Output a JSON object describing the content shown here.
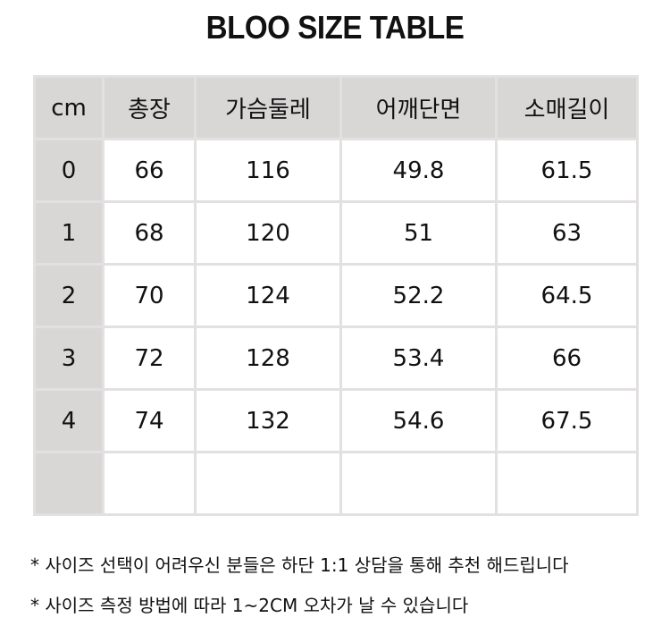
{
  "title": "BLOO SIZE TABLE",
  "table": {
    "headers": [
      "cm",
      "총장",
      "가슴둘레",
      "어깨단면",
      "소매길이"
    ],
    "rows": [
      [
        "0",
        "66",
        "116",
        "49.8",
        "61.5"
      ],
      [
        "1",
        "68",
        "120",
        "51",
        "63"
      ],
      [
        "2",
        "70",
        "124",
        "52.2",
        "64.5"
      ],
      [
        "3",
        "72",
        "128",
        "53.4",
        "66"
      ],
      [
        "4",
        "74",
        "132",
        "54.6",
        "67.5"
      ],
      [
        "",
        "",
        "",
        "",
        ""
      ]
    ]
  },
  "notes": [
    "* 사이즈 선택이 어려우신 분들은 하단 1:1 상담을 통해 추천 해드립니다",
    "* 사이즈 측정 방법에 따라 1~2CM 오차가 날 수 있습니다"
  ],
  "colors": {
    "header_bg": "#d9d6d6",
    "border": "#e2e0e0"
  }
}
